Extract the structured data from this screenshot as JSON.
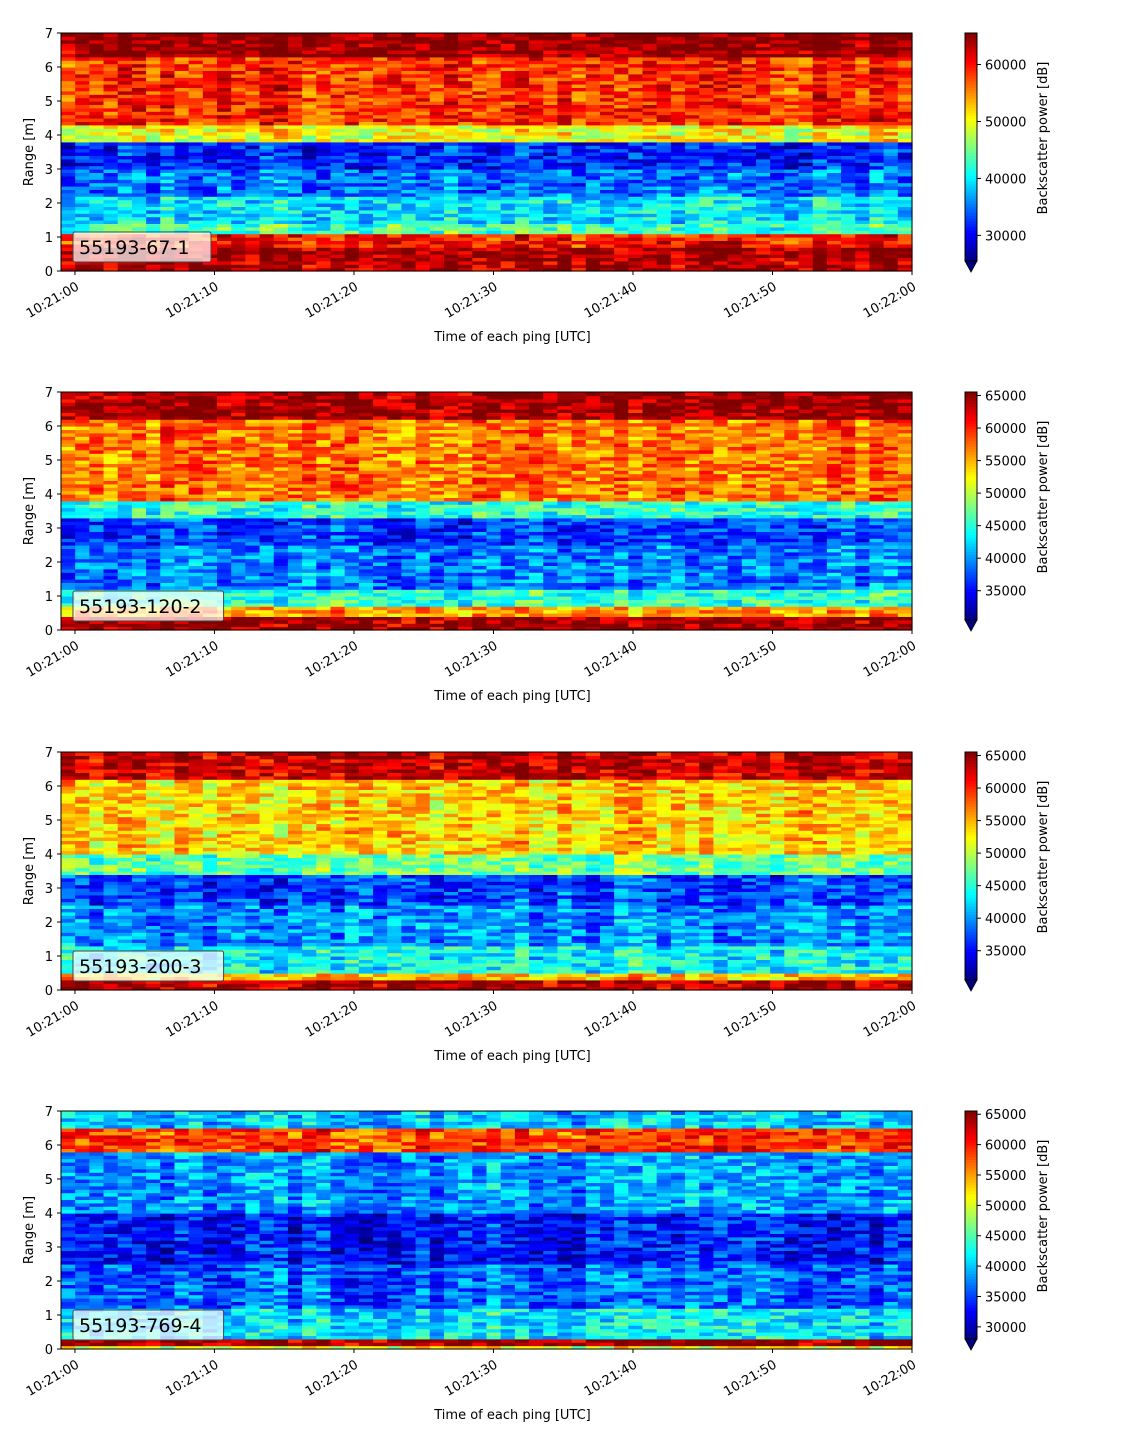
{
  "chart_data": [
    {
      "type": "heatmap",
      "label": "55193-67-1",
      "xlabel": "Time of each ping [UTC]",
      "ylabel": "Range [m]",
      "x_ticks": [
        "10:21:00",
        "10:21:10",
        "10:21:20",
        "10:21:30",
        "10:21:40",
        "10:21:50",
        "10:22:00"
      ],
      "x_range": [
        "10:20:59",
        "10:22:00"
      ],
      "y_ticks": [
        0,
        1,
        2,
        3,
        4,
        5,
        6,
        7
      ],
      "ylim": [
        0,
        7
      ],
      "colorbar": {
        "label": "Backscatter power [dB]",
        "ticks": [
          30000,
          40000,
          50000,
          60000
        ],
        "range": [
          25500,
          65535
        ],
        "extend": "min",
        "colormap": "jet"
      },
      "range_profile": [
        {
          "from": 0.0,
          "to": 0.3,
          "level": 0.95
        },
        {
          "from": 0.3,
          "to": 0.7,
          "level": 0.97
        },
        {
          "from": 0.7,
          "to": 1.1,
          "level": 0.86
        },
        {
          "from": 1.1,
          "to": 1.4,
          "level": 0.45
        },
        {
          "from": 1.4,
          "to": 2.2,
          "level": 0.36
        },
        {
          "from": 2.2,
          "to": 3.0,
          "level": 0.24
        },
        {
          "from": 3.0,
          "to": 3.8,
          "level": 0.16
        },
        {
          "from": 3.8,
          "to": 4.3,
          "level": 0.62
        },
        {
          "from": 4.3,
          "to": 6.3,
          "level": 0.84
        },
        {
          "from": 6.3,
          "to": 7.0,
          "level": 0.99
        }
      ]
    },
    {
      "type": "heatmap",
      "label": "55193-120-2",
      "xlabel": "Time of each ping [UTC]",
      "ylabel": "Range [m]",
      "x_ticks": [
        "10:21:00",
        "10:21:10",
        "10:21:20",
        "10:21:30",
        "10:21:40",
        "10:21:50",
        "10:22:00"
      ],
      "x_range": [
        "10:20:59",
        "10:22:00"
      ],
      "y_ticks": [
        0,
        1,
        2,
        3,
        4,
        5,
        6,
        7
      ],
      "ylim": [
        0,
        7
      ],
      "colorbar": {
        "label": "Backscatter power [dB]",
        "ticks": [
          35000,
          40000,
          45000,
          50000,
          55000,
          60000,
          65000
        ],
        "range": [
          30500,
          65535
        ],
        "extend": "min",
        "colormap": "jet"
      },
      "range_profile": [
        {
          "from": 0.0,
          "to": 0.4,
          "level": 0.97
        },
        {
          "from": 0.4,
          "to": 0.7,
          "level": 0.72
        },
        {
          "from": 0.7,
          "to": 1.2,
          "level": 0.42
        },
        {
          "from": 1.2,
          "to": 2.5,
          "level": 0.25
        },
        {
          "from": 2.5,
          "to": 3.3,
          "level": 0.18
        },
        {
          "from": 3.3,
          "to": 3.8,
          "level": 0.42
        },
        {
          "from": 3.8,
          "to": 6.2,
          "level": 0.76
        },
        {
          "from": 6.2,
          "to": 7.0,
          "level": 0.97
        }
      ]
    },
    {
      "type": "heatmap",
      "label": "55193-200-3",
      "xlabel": "Time of each ping [UTC]",
      "ylabel": "Range [m]",
      "x_ticks": [
        "10:21:00",
        "10:21:10",
        "10:21:20",
        "10:21:30",
        "10:21:40",
        "10:21:50",
        "10:22:00"
      ],
      "x_range": [
        "10:20:59",
        "10:22:00"
      ],
      "y_ticks": [
        0,
        1,
        2,
        3,
        4,
        5,
        6,
        7
      ],
      "ylim": [
        0,
        7
      ],
      "colorbar": {
        "label": "Backscatter power [dB]",
        "ticks": [
          35000,
          40000,
          45000,
          50000,
          55000,
          60000,
          65000
        ],
        "range": [
          30500,
          65535
        ],
        "extend": "min",
        "colormap": "jet"
      },
      "range_profile": [
        {
          "from": 0.0,
          "to": 0.3,
          "level": 0.95
        },
        {
          "from": 0.3,
          "to": 0.5,
          "level": 0.68
        },
        {
          "from": 0.5,
          "to": 1.3,
          "level": 0.38
        },
        {
          "from": 1.3,
          "to": 2.5,
          "level": 0.27
        },
        {
          "from": 2.5,
          "to": 3.4,
          "level": 0.19
        },
        {
          "from": 3.4,
          "to": 4.0,
          "level": 0.48
        },
        {
          "from": 4.0,
          "to": 6.2,
          "level": 0.67
        },
        {
          "from": 6.2,
          "to": 7.0,
          "level": 0.93
        }
      ]
    },
    {
      "type": "heatmap",
      "label": "55193-769-4",
      "xlabel": "Time of each ping [UTC]",
      "ylabel": "Range [m]",
      "x_ticks": [
        "10:21:00",
        "10:21:10",
        "10:21:20",
        "10:21:30",
        "10:21:40",
        "10:21:50",
        "10:22:00"
      ],
      "x_range": [
        "10:20:59",
        "10:22:00"
      ],
      "y_ticks": [
        0,
        1,
        2,
        3,
        4,
        5,
        6,
        7
      ],
      "ylim": [
        0,
        7
      ],
      "colorbar": {
        "label": "Backscatter power [dB]",
        "ticks": [
          30000,
          35000,
          40000,
          45000,
          50000,
          55000,
          60000,
          65000
        ],
        "range": [
          28000,
          65535
        ],
        "extend": "min",
        "colormap": "jet"
      },
      "range_profile": [
        {
          "from": 0.0,
          "to": 0.15,
          "level": 0.6
        },
        {
          "from": 0.15,
          "to": 0.35,
          "level": 0.97
        },
        {
          "from": 0.35,
          "to": 1.2,
          "level": 0.36
        },
        {
          "from": 1.2,
          "to": 2.5,
          "level": 0.22
        },
        {
          "from": 2.5,
          "to": 4.0,
          "level": 0.14
        },
        {
          "from": 4.0,
          "to": 5.8,
          "level": 0.28
        },
        {
          "from": 5.8,
          "to": 6.5,
          "level": 0.82
        },
        {
          "from": 6.5,
          "to": 7.0,
          "level": 0.33
        }
      ]
    }
  ]
}
